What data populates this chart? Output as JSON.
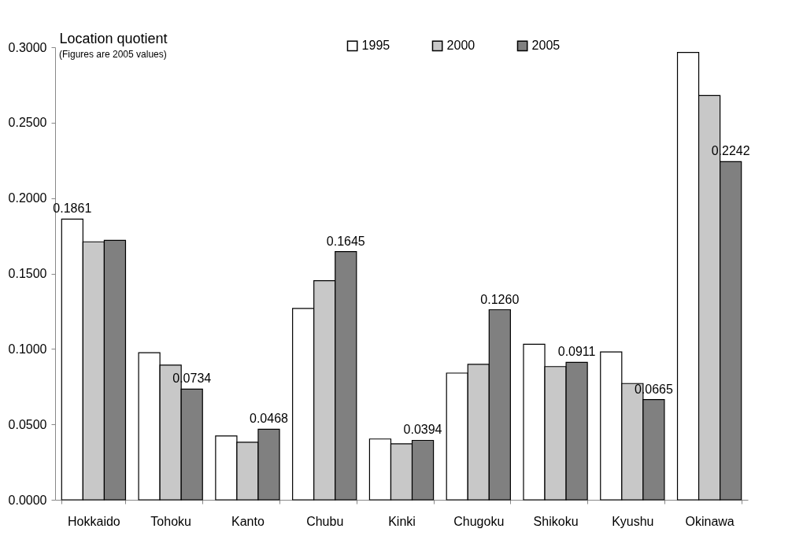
{
  "chart_data": {
    "type": "bar",
    "ylabel": "Location quotient",
    "categories": [
      "Hokkaido",
      "Tohoku",
      "Kanto",
      "Chubu",
      "Kinki",
      "Chugoku",
      "Shikoku",
      "Kyushu",
      "Okinawa"
    ],
    "series": [
      {
        "name": "1995",
        "color": "#ffffff",
        "values": [
          0.1861,
          0.0975,
          0.0423,
          0.1268,
          0.0403,
          0.084,
          0.1031,
          0.098,
          0.2965
        ],
        "value_labels": [
          "0.1861",
          null,
          null,
          null,
          null,
          null,
          null,
          null,
          null
        ]
      },
      {
        "name": "2000",
        "color": "#c8c8c8",
        "values": [
          0.171,
          0.0893,
          0.0382,
          0.1452,
          0.0371,
          0.0898,
          0.0883,
          0.0771,
          0.268
        ]
      },
      {
        "name": "2005",
        "color": "#808080",
        "values": [
          0.172,
          0.0734,
          0.0468,
          0.1645,
          0.0394,
          0.126,
          0.0911,
          0.0665,
          0.2242
        ],
        "value_labels": [
          null,
          "0.0734",
          "0.0468",
          "0.1645",
          "0.0394",
          "0.1260",
          "0.0911",
          "0.0665",
          "0.2242"
        ]
      }
    ],
    "ylim": [
      0,
      0.3
    ],
    "yticks": [
      {
        "value": 0,
        "label": "0.0000"
      },
      {
        "value": 0.05,
        "label": "0.0500"
      },
      {
        "value": 0.1,
        "label": "0.1000"
      },
      {
        "value": 0.15,
        "label": "0.1500"
      },
      {
        "value": 0.2,
        "label": "0.2000"
      },
      {
        "value": 0.25,
        "label": "0.2500"
      },
      {
        "value": 0.3,
        "label": "0.3000"
      }
    ],
    "annotations": [
      "(Figures are 2005 values)"
    ],
    "grid": false,
    "legend": "top"
  }
}
